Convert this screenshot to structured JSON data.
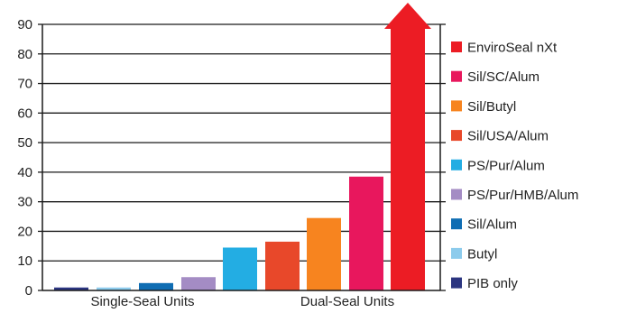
{
  "chart_data": {
    "type": "bar",
    "ylim": [
      0,
      90
    ],
    "y_ticks": [
      0,
      10,
      20,
      30,
      40,
      50,
      60,
      70,
      80,
      90
    ],
    "grid": true,
    "legend_position": "right",
    "categories": [
      "Single-Seal Units",
      "Dual-Seal Units"
    ],
    "series": [
      {
        "name": "PIB only",
        "group": "Single-Seal Units",
        "value": 1,
        "color": "#2b3580"
      },
      {
        "name": "Butyl",
        "group": "Single-Seal Units",
        "value": 1,
        "color": "#8ccbec"
      },
      {
        "name": "Sil/Alum",
        "group": "Single-Seal Units",
        "value": 2.5,
        "color": "#0f6db3"
      },
      {
        "name": "PS/Pur/HMB/Alum",
        "group": "Single-Seal Units",
        "value": 4.5,
        "color": "#a48cc4"
      },
      {
        "name": "PS/Pur/Alum",
        "group": "Dual-Seal Units",
        "value": 14.5,
        "color": "#23ade3"
      },
      {
        "name": "Sil/USA/Alum",
        "group": "Dual-Seal Units",
        "value": 16.5,
        "color": "#e8482a"
      },
      {
        "name": "Sil/Butyl",
        "group": "Dual-Seal Units",
        "value": 24.5,
        "color": "#f7841f"
      },
      {
        "name": "Sil/SC/Alum",
        "group": "Dual-Seal Units",
        "value": 38.5,
        "color": "#e8175d"
      },
      {
        "name": "EnviroSeal nXt",
        "group": "Dual-Seal Units",
        "value": 90,
        "exceeds_axis": true,
        "color": "#ec1c24"
      }
    ],
    "legend_order": [
      "EnviroSeal nXt",
      "Sil/SC/Alum",
      "Sil/Butyl",
      "Sil/USA/Alum",
      "PS/Pur/Alum",
      "PS/Pur/HMB/Alum",
      "Sil/Alum",
      "Butyl",
      "PIB only"
    ]
  }
}
